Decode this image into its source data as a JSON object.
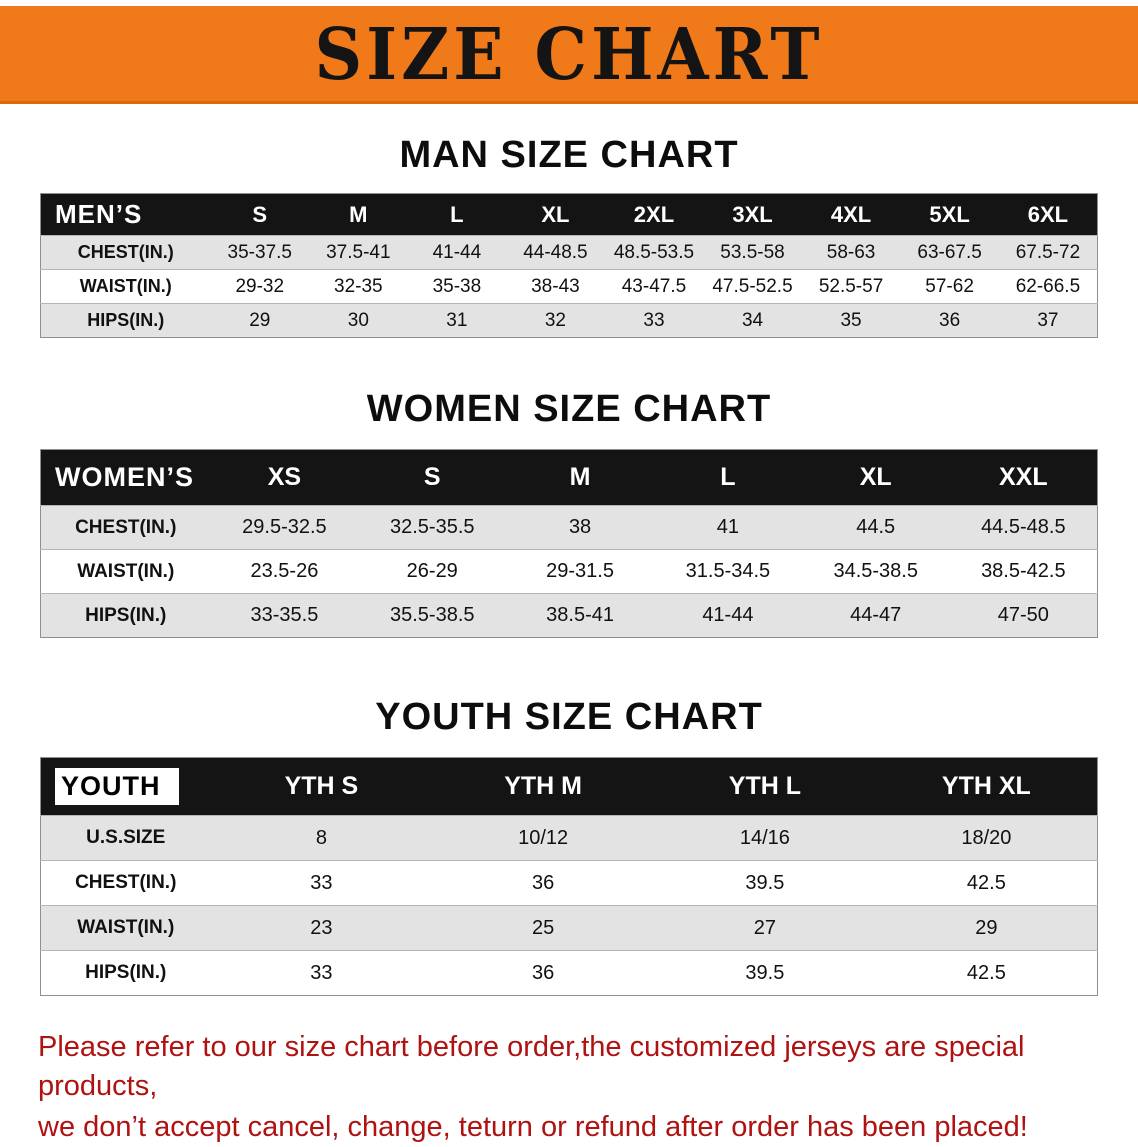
{
  "theme": {
    "banner_bg": "#F0791A",
    "header_bg": "#141414",
    "stripe_bg": "#E3E3E3",
    "footer_color": "#B01212"
  },
  "banner": {
    "title": "SIZE CHART"
  },
  "sections": [
    {
      "title": "MAN SIZE CHART",
      "header_label": "MEN’S",
      "label_chip": false,
      "columns": [
        "S",
        "M",
        "L",
        "XL",
        "2XL",
        "3XL",
        "4XL",
        "5XL",
        "6XL"
      ],
      "rows": [
        {
          "label": "CHEST(IN.)",
          "values": [
            "35-37.5",
            "37.5-41",
            "41-44",
            "44-48.5",
            "48.5-53.5",
            "53.5-58",
            "58-63",
            "63-67.5",
            "67.5-72"
          ]
        },
        {
          "label": "WAIST(IN.)",
          "values": [
            "29-32",
            "32-35",
            "35-38",
            "38-43",
            "43-47.5",
            "47.5-52.5",
            "52.5-57",
            "57-62",
            "62-66.5"
          ]
        },
        {
          "label": "HIPS(IN.)",
          "values": [
            "29",
            "30",
            "31",
            "32",
            "33",
            "34",
            "35",
            "36",
            "37"
          ]
        }
      ]
    },
    {
      "title": "WOMEN SIZE CHART",
      "header_label": "WOMEN’S",
      "label_chip": false,
      "columns": [
        "XS",
        "S",
        "M",
        "L",
        "XL",
        "XXL"
      ],
      "rows": [
        {
          "label": "CHEST(IN.)",
          "values": [
            "29.5-32.5",
            "32.5-35.5",
            "38",
            "41",
            "44.5",
            "44.5-48.5"
          ]
        },
        {
          "label": "WAIST(IN.)",
          "values": [
            "23.5-26",
            "26-29",
            "29-31.5",
            "31.5-34.5",
            "34.5-38.5",
            "38.5-42.5"
          ]
        },
        {
          "label": "HIPS(IN.)",
          "values": [
            "33-35.5",
            "35.5-38.5",
            "38.5-41",
            "41-44",
            "44-47",
            "47-50"
          ]
        }
      ]
    },
    {
      "title": "YOUTH SIZE CHART",
      "header_label": "YOUTH",
      "label_chip": true,
      "columns": [
        "YTH S",
        "YTH M",
        "YTH L",
        "YTH XL"
      ],
      "rows": [
        {
          "label": "U.S.SIZE",
          "values": [
            "8",
            "10/12",
            "14/16",
            "18/20"
          ]
        },
        {
          "label": "CHEST(IN.)",
          "values": [
            "33",
            "36",
            "39.5",
            "42.5"
          ]
        },
        {
          "label": "WAIST(IN.)",
          "values": [
            "23",
            "25",
            "27",
            "29"
          ]
        },
        {
          "label": "HIPS(IN.)",
          "values": [
            "33",
            "36",
            "39.5",
            "42.5"
          ]
        }
      ]
    }
  ],
  "footer": {
    "line1": "Please refer to our size chart before order,the customized jerseys are special products,",
    "line2": "we don’t accept cancel, change, teturn or refund after order has been placed!"
  }
}
